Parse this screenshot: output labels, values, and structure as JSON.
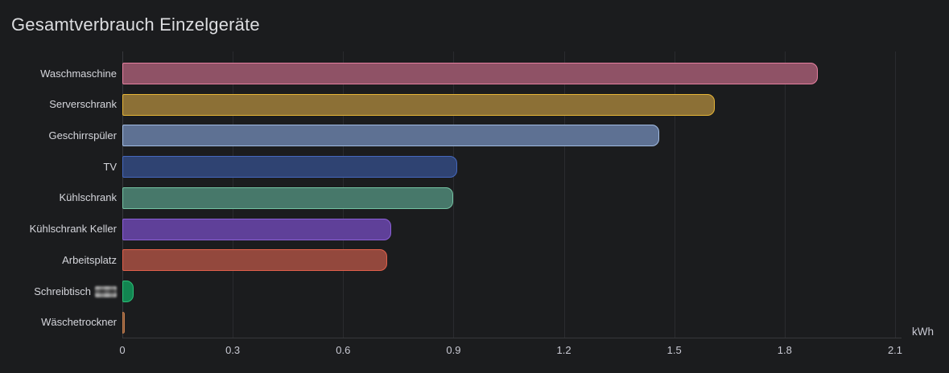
{
  "panel": {
    "title": "Gesamtverbrauch Einzelgeräte",
    "background_color": "#1b1c1e",
    "title_color": "#dcdde0",
    "text_color": "#c8c9d3"
  },
  "chart_data": {
    "type": "bar",
    "orientation": "horizontal",
    "title": "Gesamtverbrauch Einzelgeräte",
    "xlabel": "kWh",
    "ylabel": "",
    "unit_label": "kWh",
    "xlim": [
      0,
      2.1
    ],
    "x_ticks": [
      "0",
      "0.3",
      "0.6",
      "0.9",
      "1.2",
      "1.5",
      "1.8",
      "2.1"
    ],
    "grid": true,
    "legend": false,
    "categories": [
      "Waschmaschine",
      "Serverschrank",
      "Geschirrspüler",
      "TV",
      "Kühlschrank",
      "Kühlschrank Keller",
      "Arbeitsplatz",
      "Schreibtisch",
      "Wäschetrockner"
    ],
    "values": [
      1.89,
      1.61,
      1.46,
      0.91,
      0.9,
      0.73,
      0.72,
      0.03,
      0.005
    ],
    "redacted_suffix_index": 7,
    "styles": [
      {
        "border": "#E680A0",
        "fill": "#8F5266"
      },
      {
        "border": "#E6B537",
        "fill": "#8C7036"
      },
      {
        "border": "#A2BCE3",
        "fill": "#5E7193"
      },
      {
        "border": "#4568BE",
        "fill": "#2F4372"
      },
      {
        "border": "#74C2A2",
        "fill": "#47786A"
      },
      {
        "border": "#8B60D6",
        "fill": "#5F4099"
      },
      {
        "border": "#E0604B",
        "fill": "#93483D"
      },
      {
        "border": "#2CBE77",
        "fill": "#128551"
      },
      {
        "border": "#C07C4E",
        "fill": "#8C5A38"
      }
    ]
  }
}
